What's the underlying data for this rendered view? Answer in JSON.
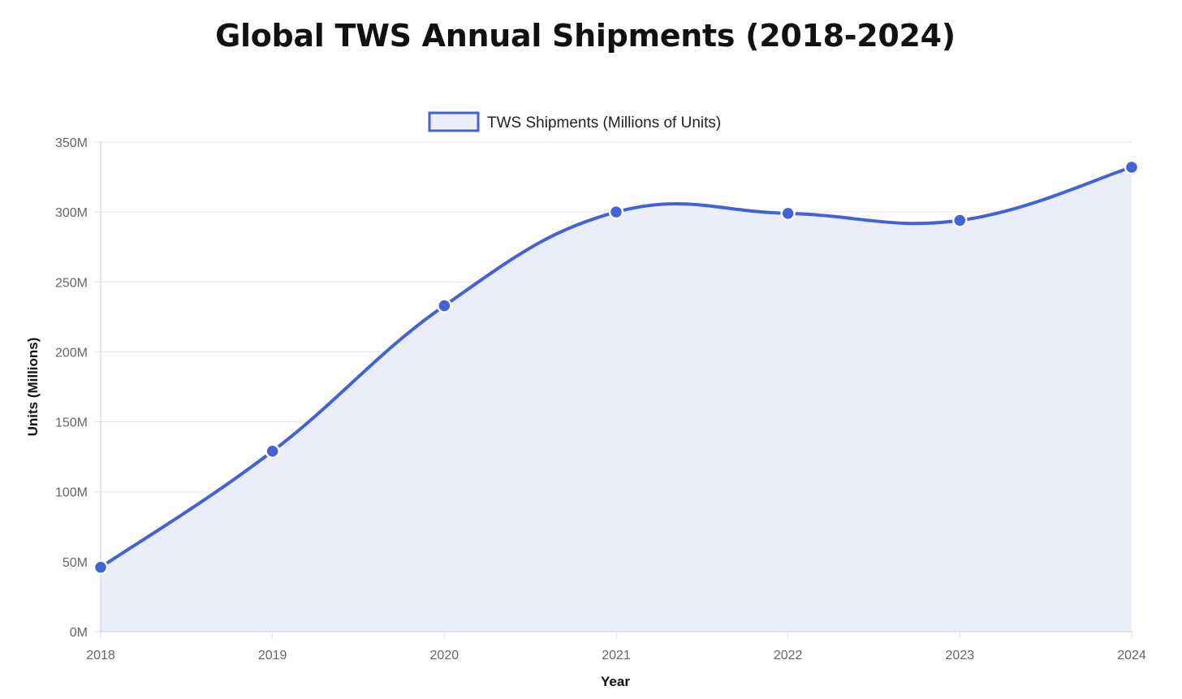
{
  "chart_data": {
    "type": "area",
    "title": "Global TWS Annual Shipments (2018-2024)",
    "categories": [
      "2018",
      "2019",
      "2020",
      "2021",
      "2022",
      "2023",
      "2024"
    ],
    "series": [
      {
        "name": "TWS Shipments (Millions of Units)",
        "values": [
          46,
          129,
          233,
          300,
          299,
          294,
          332
        ],
        "color": "#4263d8",
        "fill": "#eaeefa"
      }
    ],
    "xlabel": "Year",
    "ylabel": "Units (Millions)",
    "ylim": [
      0,
      350
    ],
    "yticks": [
      0,
      50,
      100,
      150,
      200,
      250,
      300,
      350
    ],
    "ytick_labels": [
      "0M",
      "50M",
      "100M",
      "150M",
      "200M",
      "250M",
      "300M",
      "350M"
    ],
    "grid": true,
    "legend": "top-center"
  },
  "colors": {
    "grid": "#e3e3e3",
    "axis": "#c8ccd8",
    "point_border": "#ffffff"
  }
}
